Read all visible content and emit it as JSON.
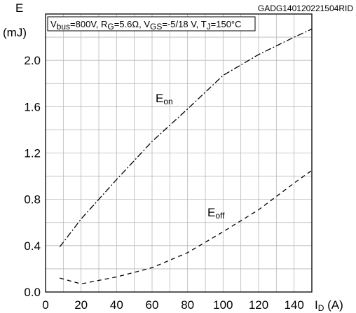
{
  "chart_data": {
    "type": "line",
    "figure_code": "GADG140120221504RID",
    "conditions": {
      "vbus_name": "V",
      "vbus_sub": "bus",
      "vbus_value": "=800V, ",
      "rg_name": "R",
      "rg_sub": "G",
      "rg_value": "=5.6Ω, ",
      "vgs_name": "V",
      "vgs_sub": "GS",
      "vgs_value": "=-5/18 V, ",
      "tj_name": "T",
      "tj_sub": "J",
      "tj_value": "=150°C"
    },
    "ylabel": {
      "symbol": "E",
      "unit": "(mJ)"
    },
    "xlabel": {
      "symbol": "I",
      "sub": "D",
      "unit": " (A)"
    },
    "xlim": [
      0,
      150
    ],
    "ylim": [
      0,
      2.4
    ],
    "xticks": [
      0,
      20,
      40,
      60,
      80,
      100,
      120,
      140
    ],
    "yticks": [
      "0.0",
      "0.4",
      "0.8",
      "1.2",
      "1.6",
      "2.0"
    ],
    "grid": true,
    "series": [
      {
        "name": "E",
        "name_sub": "on",
        "style": "dash-dot",
        "x": [
          8,
          20,
          40,
          60,
          80,
          100,
          120,
          140,
          150
        ],
        "y": [
          0.39,
          0.63,
          0.97,
          1.3,
          1.58,
          1.87,
          2.05,
          2.2,
          2.27
        ]
      },
      {
        "name": "E",
        "name_sub": "off",
        "style": "dashed",
        "x": [
          8,
          20,
          40,
          60,
          80,
          100,
          120,
          140,
          150
        ],
        "y": [
          0.12,
          0.07,
          0.13,
          0.21,
          0.34,
          0.52,
          0.71,
          0.94,
          1.05
        ]
      }
    ]
  }
}
